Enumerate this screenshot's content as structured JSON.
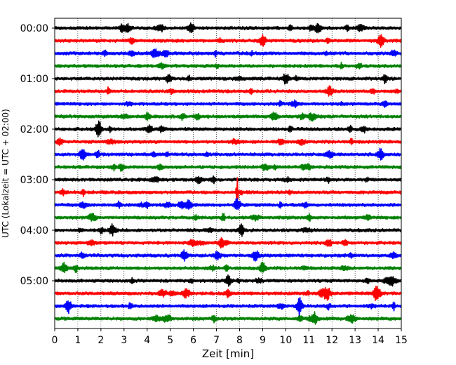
{
  "chart_data": {
    "type": "line",
    "subtype": "helicorder-seismogram",
    "xlabel": "Zeit  [min]",
    "ylabel": "UTC (Lokalzeit = UTC + 02:00)",
    "xlim": [
      0,
      15
    ],
    "xticks": [
      "0",
      "1",
      "2",
      "3",
      "4",
      "5",
      "6",
      "7",
      "8",
      "9",
      "10",
      "11",
      "12",
      "13",
      "14",
      "15"
    ],
    "ytick_labels": [
      "00:00",
      "01:00",
      "02:00",
      "03:00",
      "04:00",
      "05:00"
    ],
    "trace_count": 24,
    "trace_interval_minutes": 15,
    "trace_colors": [
      "#000000",
      "#ff0000",
      "#0000ff",
      "#008000"
    ],
    "grid": {
      "vertical_dotted": true
    },
    "notable_events": [
      {
        "trace": 0,
        "minute": 5.9,
        "amplitude": 0.35
      },
      {
        "trace": 0,
        "minute": 11.4,
        "amplitude": 0.4
      },
      {
        "trace": 1,
        "minute": 9.0,
        "amplitude": 0.45
      },
      {
        "trace": 4,
        "minute": 10.0,
        "amplitude": 0.45
      },
      {
        "trace": 5,
        "minute": 11.9,
        "amplitude": 0.35
      },
      {
        "trace": 7,
        "minute": 9.5,
        "amplitude": 0.35
      },
      {
        "trace": 8,
        "minute": 1.9,
        "amplitude": 0.6
      },
      {
        "trace": 8,
        "minute": 4.1,
        "amplitude": 0.35
      },
      {
        "trace": 10,
        "minute": 1.2,
        "amplitude": 0.4
      },
      {
        "trace": 10,
        "minute": 14.1,
        "amplitude": 0.4
      },
      {
        "trace": 13,
        "minute": 7.9,
        "amplitude": 1.6
      },
      {
        "trace": 14,
        "minute": 5.8,
        "amplitude": 0.45
      },
      {
        "trace": 14,
        "minute": 7.9,
        "amplitude": 0.45
      },
      {
        "trace": 18,
        "minute": 5.6,
        "amplitude": 0.4
      },
      {
        "trace": 18,
        "minute": 8.7,
        "amplitude": 0.4
      },
      {
        "trace": 19,
        "minute": 0.4,
        "amplitude": 0.45
      },
      {
        "trace": 19,
        "minute": 9.0,
        "amplitude": 0.4
      },
      {
        "trace": 20,
        "minute": 7.5,
        "amplitude": 0.4
      },
      {
        "trace": 21,
        "minute": 11.8,
        "amplitude": 0.5
      },
      {
        "trace": 21,
        "minute": 13.9,
        "amplitude": 0.4
      },
      {
        "trace": 22,
        "minute": 0.6,
        "amplitude": 0.5
      },
      {
        "trace": 22,
        "minute": 10.6,
        "amplitude": 0.55
      }
    ]
  }
}
